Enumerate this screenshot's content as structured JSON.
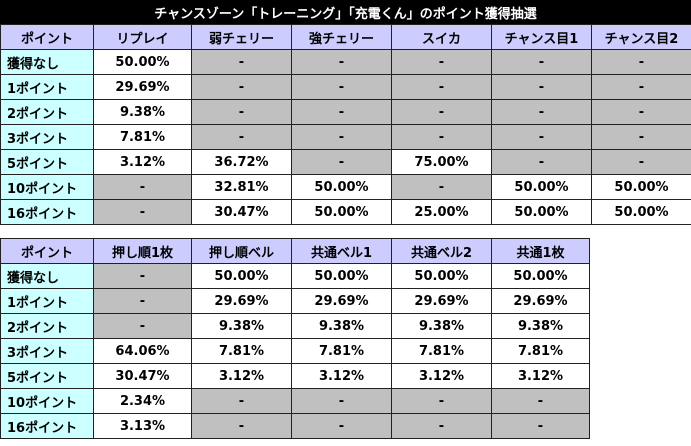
{
  "title": "チャンスゾーン「トレーニング」「充電くん」のポイント獲得抽選",
  "table1": {
    "headers": [
      "ポイント",
      "リプレイ",
      "弱チェリー",
      "強チェリー",
      "スイカ",
      "チャンス目1",
      "チャンス目2"
    ],
    "rows": [
      [
        "獲得なし",
        "50.00%",
        "-",
        "-",
        "-",
        "-",
        "-"
      ],
      [
        "1ポイント",
        "29.69%",
        "-",
        "-",
        "-",
        "-",
        "-"
      ],
      [
        "2ポイント",
        "9.38%",
        "-",
        "-",
        "-",
        "-",
        "-"
      ],
      [
        "3ポイント",
        "7.81%",
        "-",
        "-",
        "-",
        "-",
        "-"
      ],
      [
        "5ポイント",
        "3.12%",
        "36.72%",
        "-",
        "75.00%",
        "-",
        "-"
      ],
      [
        "10ポイント",
        "-",
        "32.81%",
        "50.00%",
        "-",
        "50.00%",
        "50.00%"
      ],
      [
        "16ポイント",
        "-",
        "30.47%",
        "50.00%",
        "25.00%",
        "50.00%",
        "50.00%"
      ]
    ]
  },
  "table2": {
    "headers": [
      "ポイント",
      "押し順1枚",
      "押し順ベル",
      "共通ベル1",
      "共通ベル2",
      "共通1枚"
    ],
    "rows": [
      [
        "獲得なし",
        "-",
        "50.00%",
        "50.00%",
        "50.00%",
        "50.00%"
      ],
      [
        "1ポイント",
        "-",
        "29.69%",
        "29.69%",
        "29.69%",
        "29.69%"
      ],
      [
        "2ポイント",
        "-",
        "9.38%",
        "9.38%",
        "9.38%",
        "9.38%"
      ],
      [
        "3ポイント",
        "64.06%",
        "7.81%",
        "7.81%",
        "7.81%",
        "7.81%"
      ],
      [
        "5ポイント",
        "30.47%",
        "3.12%",
        "3.12%",
        "3.12%",
        "3.12%"
      ],
      [
        "10ポイント",
        "2.34%",
        "-",
        "-",
        "-",
        "-"
      ],
      [
        "16ポイント",
        "3.13%",
        "-",
        "-",
        "-",
        "-"
      ]
    ]
  },
  "colors": {
    "header": "#ccccff",
    "label": "#ccffff",
    "gray": "#c0c0c0",
    "title_bg": "#000000"
  }
}
